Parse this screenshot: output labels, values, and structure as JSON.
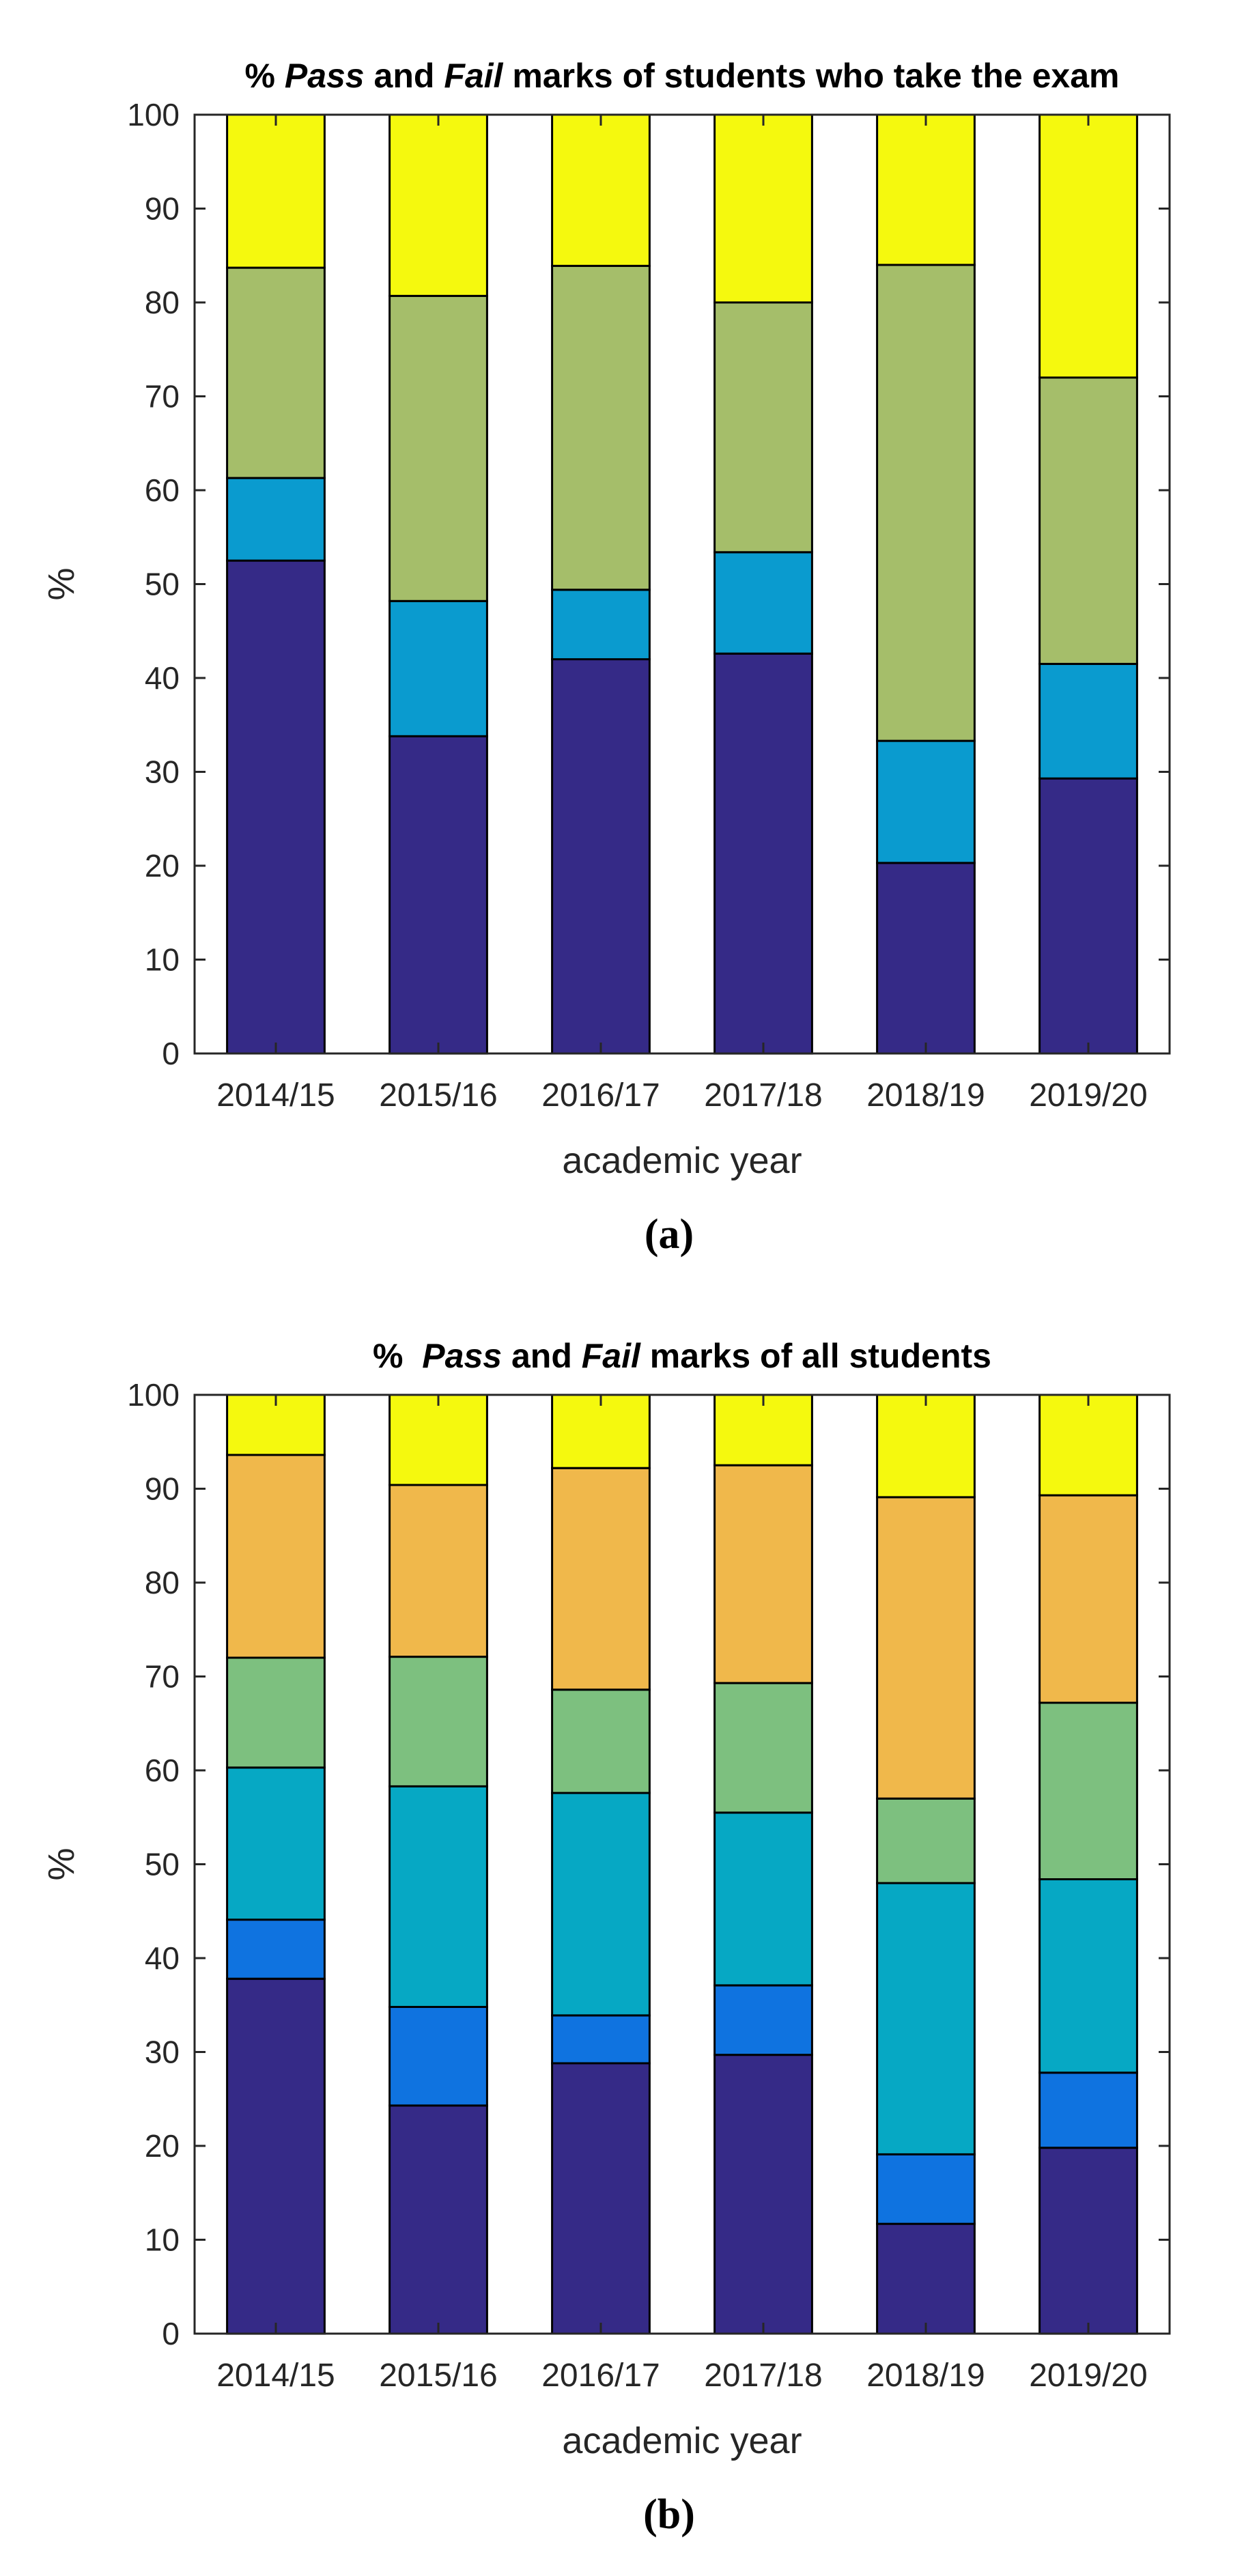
{
  "chart_data": [
    {
      "panel_label": "(a)",
      "type": "bar",
      "stacked": true,
      "title_parts": [
        {
          "text": "% ",
          "italic": false
        },
        {
          "text": "Pass",
          "italic": true
        },
        {
          "text": " and ",
          "italic": false
        },
        {
          "text": "Fail",
          "italic": true
        },
        {
          "text": " marks of students who take the exam",
          "italic": false
        }
      ],
      "xlabel": "academic year",
      "ylabel": "%",
      "ylim": [
        0,
        100
      ],
      "yticks": [
        0,
        10,
        20,
        30,
        40,
        50,
        60,
        70,
        80,
        90,
        100
      ],
      "grid": false,
      "categories": [
        "2014/15",
        "2015/16",
        "2016/17",
        "2017/18",
        "2018/19",
        "2019/20"
      ],
      "series": [
        {
          "color": "#352A87",
          "values": [
            52.5,
            33.8,
            42.0,
            42.6,
            20.3,
            29.3
          ]
        },
        {
          "color": "#0A9BCF",
          "values": [
            8.8,
            14.4,
            7.4,
            10.8,
            13.0,
            12.2
          ]
        },
        {
          "color": "#A5BE6A",
          "values": [
            22.4,
            32.5,
            34.5,
            26.6,
            50.7,
            30.5
          ]
        },
        {
          "color": "#F5F90E",
          "values": [
            16.3,
            19.3,
            16.1,
            20.0,
            16.0,
            28.0
          ]
        }
      ]
    },
    {
      "panel_label": "(b)",
      "type": "bar",
      "stacked": true,
      "title_parts": [
        {
          "text": "%  ",
          "italic": false
        },
        {
          "text": "Pass",
          "italic": true
        },
        {
          "text": " and ",
          "italic": false
        },
        {
          "text": "Fail",
          "italic": true
        },
        {
          "text": " marks of all students",
          "italic": false
        }
      ],
      "xlabel": "academic year",
      "ylabel": "%",
      "ylim": [
        0,
        100
      ],
      "yticks": [
        0,
        10,
        20,
        30,
        40,
        50,
        60,
        70,
        80,
        90,
        100
      ],
      "grid": false,
      "categories": [
        "2014/15",
        "2015/16",
        "2016/17",
        "2017/18",
        "2018/19",
        "2019/20"
      ],
      "series": [
        {
          "color": "#352A87",
          "values": [
            37.8,
            24.3,
            28.8,
            29.7,
            11.7,
            19.8
          ]
        },
        {
          "color": "#0F73E0",
          "values": [
            6.3,
            10.5,
            5.1,
            7.4,
            7.4,
            8.0
          ]
        },
        {
          "color": "#06A8C4",
          "values": [
            16.2,
            23.5,
            23.7,
            18.4,
            28.9,
            20.6
          ]
        },
        {
          "color": "#7DC07F",
          "values": [
            11.7,
            13.8,
            11.0,
            13.8,
            9.0,
            18.8
          ]
        },
        {
          "color": "#F0B84B",
          "values": [
            21.6,
            18.3,
            23.6,
            23.2,
            32.1,
            22.1
          ]
        },
        {
          "color": "#F5F90E",
          "values": [
            6.4,
            9.6,
            7.8,
            7.5,
            10.9,
            10.7
          ]
        }
      ]
    }
  ]
}
